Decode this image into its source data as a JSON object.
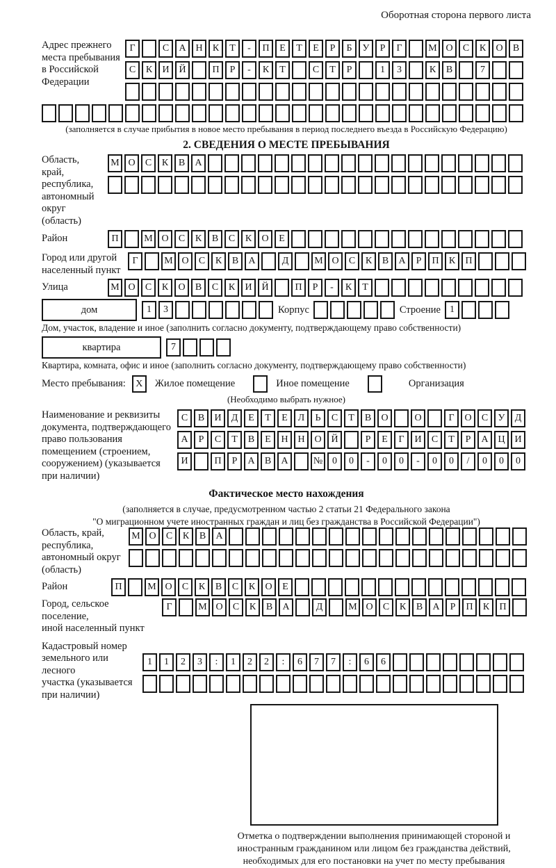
{
  "colors": {
    "ink": "#161616",
    "paper": "#ffffff"
  },
  "header": {
    "note": "Оборотная сторона первого листа"
  },
  "prev_address": {
    "label": "Адрес прежнего\nместа пребывания\nв Российской\nФедерации",
    "row1": {
      "text": "Г САНКТ-ПЕТЕРБУРГ МОСКОВ",
      "len": 24
    },
    "row2": {
      "text": "СКИЙ ПР-КТ СТР 13 КВ 7",
      "len": 24
    },
    "row3": {
      "text": "",
      "len": 24
    },
    "row4": {
      "text": "",
      "len": 29
    },
    "note": "(заполняется в случае прибытия в новое место пребывания в период последнего въезда в Российскую Федерацию)"
  },
  "section2": {
    "title": "2. СВЕДЕНИЯ О МЕСТЕ ПРЕБЫВАНИЯ",
    "region": {
      "label": "Область, край,\nреспублика,\nавтономный\nокруг (область)",
      "row1": {
        "text": "МОСКВА",
        "len": 25
      },
      "row2": {
        "text": "",
        "len": 25
      }
    },
    "district": {
      "label": "Район",
      "row1": {
        "text": "П МОСКВСКОЕ",
        "len": 25
      }
    },
    "city": {
      "label": "Город или другой\nнаселенный пункт",
      "row1": {
        "text": "Г МОСКВА Д МОСКВАРПКП",
        "len": 24
      }
    },
    "street": {
      "label": "Улица",
      "row1": {
        "text": "МОСКОВСКИЙ ПР-КТ",
        "len": 25
      }
    },
    "house": {
      "box_label": "дом",
      "num": {
        "text": "13",
        "len": 8
      },
      "korpus_label": "Корпус",
      "korpus": {
        "text": "",
        "len": 5
      },
      "stroenie_label": "Строение",
      "stroenie": {
        "text": "1",
        "len": 4
      },
      "caption": "Дом, участок, владение и иное (заполнить согласно документу, подтверждающему право собственности)"
    },
    "flat": {
      "box_label": "квартира",
      "num": {
        "text": "7",
        "len": 4
      },
      "caption": "Квартира, комната, офис и иное (заполнить согласно документу, подтверждающему право собственности)"
    },
    "stay_type": {
      "label": "Место пребывания:",
      "options": [
        {
          "label": "Жилое помещение",
          "mark": "X"
        },
        {
          "label": "Иное помещение",
          "mark": ""
        },
        {
          "label": "Организация",
          "mark": ""
        }
      ],
      "note": "(Необходимо выбрать нужное)"
    },
    "document": {
      "label": "Наименование и реквизиты\nдокумента, подтверждающего\nправо пользования\nпомещением (строением,\nсооружением) (указывается\nпри наличии)",
      "row1": {
        "text": "СВИДЕТЕЛЬСТВО О ГОСУД",
        "len": 21
      },
      "row2": {
        "text": "АРСТВЕННОЙ РЕГИСТРАЦИ",
        "len": 21
      },
      "row3": {
        "text": "И ПРАВА №00-00-00/000",
        "len": 21
      }
    }
  },
  "actual_location": {
    "title": "Фактическое место нахождения",
    "note1": "(заполняется в случае, предусмотренном частью 2 статьи 21 Федерального закона",
    "note2": "\"О миграционном учете иностранных граждан и лиц без гражданства в Российской Федерации\")",
    "region": {
      "label": "Область, край,\nреспублика,\nавтономный округ\n(область)",
      "row1": {
        "text": "МОСКВА",
        "len": 24
      },
      "row2": {
        "text": "",
        "len": 24
      }
    },
    "district": {
      "label": "Район",
      "row1": {
        "text": "П МОСКВСКОЕ",
        "len": 25
      }
    },
    "city": {
      "label": "Город, сельское поселение,\nиной населенный пункт",
      "row1": {
        "text": "Г МОСКВА Д МОСКВАРПКП",
        "len": 22
      }
    },
    "cadastre": {
      "label": "Кадастровый номер\nземельного или лесного\nучастка (указывается\nпри наличии)",
      "row1": {
        "text": "1123:122:677:66",
        "len": 23
      },
      "row2": {
        "text": "",
        "len": 23
      }
    }
  },
  "stamp": {
    "caption": "Отметка о подтверждении выполнения принимающей стороной и иностранным гражданином или лицом без гражданства действий, необходимых для его постановки на учет по месту пребывания"
  }
}
